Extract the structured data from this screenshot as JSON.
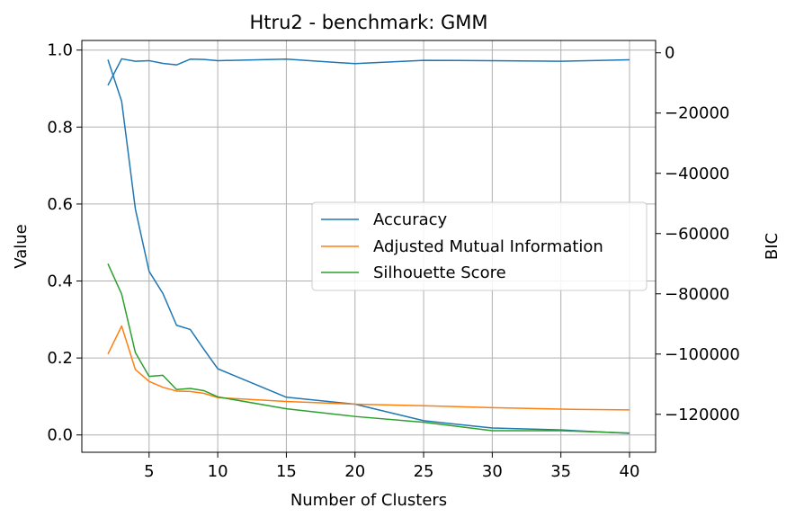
{
  "chart_data": {
    "type": "line",
    "title": "Htru2 - benchmark: GMM",
    "xlabel": "Number of Clusters",
    "ylabel": "Value",
    "ylabel_right": "BIC",
    "xlim": [
      0.1,
      41.9
    ],
    "ylim": [
      -0.045,
      1.025
    ],
    "ylim_right": [
      -132600,
      4100
    ],
    "xticks": [
      5,
      10,
      15,
      20,
      25,
      30,
      35,
      40
    ],
    "yticks": [
      0.0,
      0.2,
      0.4,
      0.6,
      0.8,
      1.0
    ],
    "yticks_right": [
      0,
      -20000,
      -40000,
      -60000,
      -80000,
      -100000,
      -120000
    ],
    "ytick_labels": [
      "0.0",
      "0.2",
      "0.4",
      "0.6",
      "0.8",
      "1.0"
    ],
    "yticks_right_labels": [
      "0",
      "−20000",
      "−40000",
      "−60000",
      "−80000",
      "−100000",
      "−120000"
    ],
    "grid": true,
    "legend_placement": "center-right",
    "x": [
      2,
      3,
      4,
      5,
      6,
      7,
      8,
      9,
      10,
      15,
      20,
      25,
      30,
      35,
      40
    ],
    "series": [
      {
        "name": "Accuracy",
        "axis": "left",
        "color": "#1f77b4",
        "values": [
          0.975,
          0.867,
          0.587,
          0.425,
          0.368,
          0.285,
          0.274,
          0.222,
          0.172,
          0.098,
          0.08,
          0.037,
          0.018,
          0.013,
          0.004
        ]
      },
      {
        "name": "Adjusted Mutual Information",
        "axis": "left",
        "color": "#ff7f0e",
        "values": [
          0.21,
          0.283,
          0.17,
          0.139,
          0.124,
          0.114,
          0.113,
          0.108,
          0.097,
          0.087,
          0.08,
          0.076,
          0.071,
          0.067,
          0.065
        ]
      },
      {
        "name": "Silhouette Score",
        "axis": "left",
        "color": "#2ca02c",
        "values": [
          0.445,
          0.366,
          0.214,
          0.152,
          0.155,
          0.118,
          0.121,
          0.115,
          0.099,
          0.068,
          0.048,
          0.033,
          0.011,
          0.011,
          0.005
        ]
      },
      {
        "axis": "right",
        "color": "#1f77b4",
        "values": [
          -10800,
          -2000,
          -2800,
          -2600,
          -3500,
          -4000,
          -2100,
          -2200,
          -2600,
          -2100,
          -3600,
          -2500,
          -2600,
          -2800,
          -2300
        ]
      }
    ]
  }
}
